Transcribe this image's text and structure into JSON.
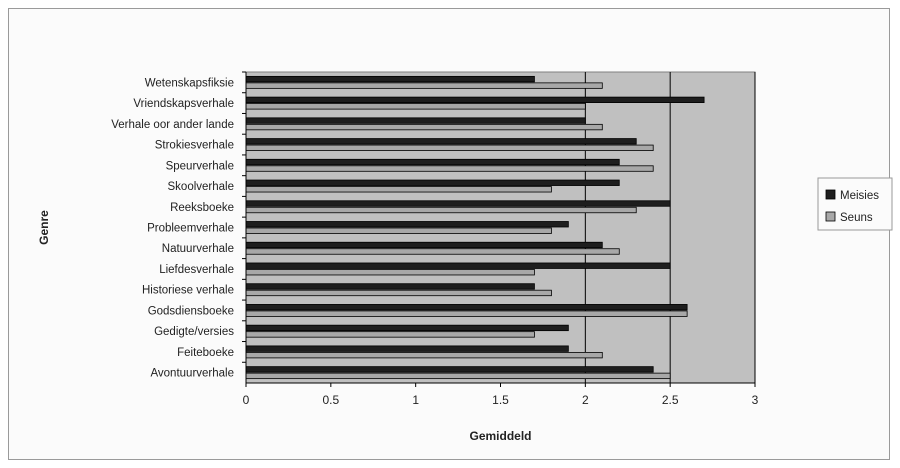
{
  "chart_data": {
    "type": "bar",
    "orientation": "horizontal",
    "title": "",
    "xlabel": "Gemiddeld",
    "ylabel": "Genre",
    "xlim": [
      0,
      3
    ],
    "xticks": [
      "0",
      "0.5",
      "1",
      "1.5",
      "2",
      "2.5",
      "3"
    ],
    "grid": "vertical lines at 2, 2.5, 3",
    "legend_position": "right",
    "categories": [
      "Wetenskapsfiksie",
      "Vriendskapsverhale",
      "Verhale oor ander lande",
      "Strokiesverhale",
      "Speurverhale",
      "Skoolverhale",
      "Reeksboeke",
      "Probleemverhale",
      "Natuurverhale",
      "Liefdesverhale",
      "Historiese verhale",
      "Godsdiensboeke",
      "Gedigte/versies",
      "Feiteboeke",
      "Avontuurverhale"
    ],
    "series": [
      {
        "name": "Meisies",
        "color": "#1e1e1e",
        "values": [
          1.7,
          2.7,
          2.0,
          2.3,
          2.2,
          2.2,
          2.5,
          1.9,
          2.1,
          2.5,
          1.7,
          2.6,
          1.9,
          1.9,
          2.4
        ]
      },
      {
        "name": "Seuns",
        "color": "#a8a8a8",
        "values": [
          2.1,
          2.0,
          2.1,
          2.4,
          2.4,
          1.8,
          2.3,
          1.8,
          2.2,
          1.7,
          1.8,
          2.6,
          1.7,
          2.1,
          2.5
        ]
      }
    ],
    "colors": {
      "plot_bg": "#c0c0c0",
      "outer_bg": "#fbfbfb",
      "frame": "#9a9a9a",
      "gridline": "#000000"
    }
  }
}
